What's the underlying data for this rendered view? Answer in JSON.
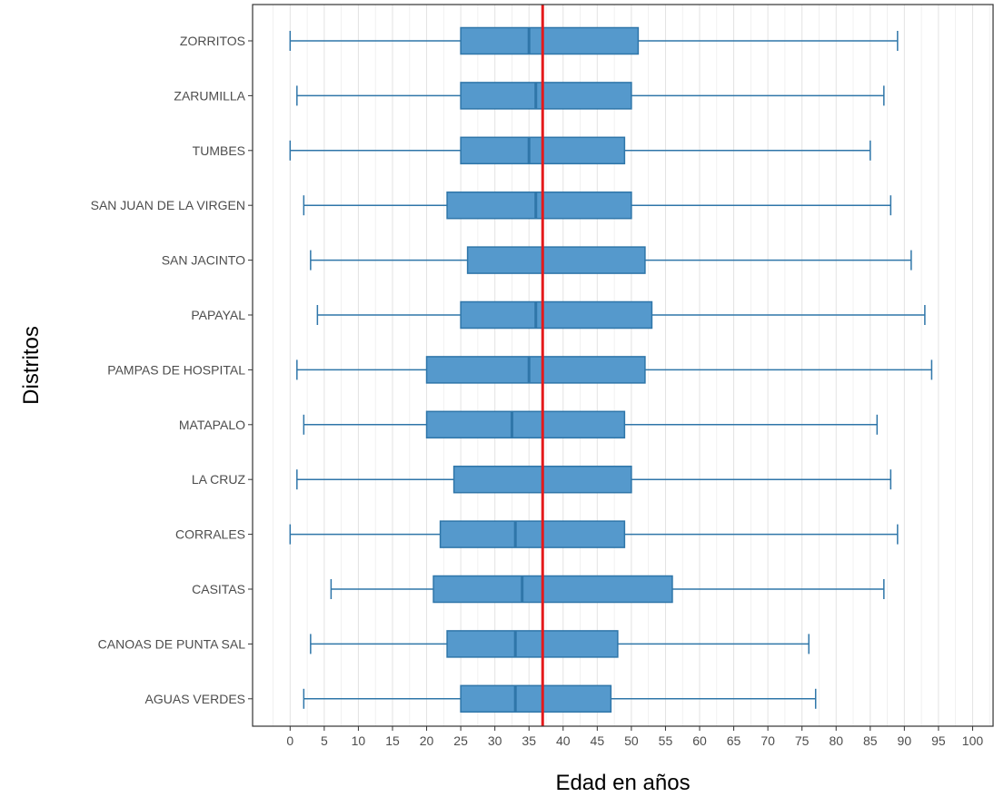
{
  "chart_data": {
    "type": "boxplot",
    "orientation": "horizontal",
    "xlabel": "Edad en años",
    "ylabel": "Distritos",
    "xlim": [
      -5.5,
      103
    ],
    "xticks": [
      0,
      5,
      10,
      15,
      20,
      25,
      30,
      35,
      40,
      45,
      50,
      55,
      60,
      65,
      70,
      75,
      80,
      85,
      90,
      95,
      100
    ],
    "grid": "vertical-major-and-minor",
    "reference_line": {
      "x": 37,
      "color": "#e41a1c"
    },
    "box_color": "#5599cc",
    "box_edge_color": "#2f76a9",
    "categories": [
      "AGUAS VERDES",
      "CANOAS DE PUNTA SAL",
      "CASITAS",
      "CORRALES",
      "LA CRUZ",
      "MATAPALO",
      "PAMPAS DE HOSPITAL",
      "PAPAYAL",
      "SAN JACINTO",
      "SAN JUAN DE LA VIRGEN",
      "TUMBES",
      "ZARUMILLA",
      "ZORRITOS"
    ],
    "boxes": [
      {
        "category": "AGUAS VERDES",
        "min": 2,
        "q1": 25,
        "median": 33,
        "q3": 47,
        "max": 77
      },
      {
        "category": "CANOAS DE PUNTA SAL",
        "min": 3,
        "q1": 23,
        "median": 33,
        "q3": 48,
        "max": 76
      },
      {
        "category": "CASITAS",
        "min": 6,
        "q1": 21,
        "median": 34,
        "q3": 56,
        "max": 87
      },
      {
        "category": "CORRALES",
        "min": 0,
        "q1": 22,
        "median": 33,
        "q3": 49,
        "max": 89
      },
      {
        "category": "LA CRUZ",
        "min": 1,
        "q1": 24,
        "median": 37,
        "q3": 50,
        "max": 88
      },
      {
        "category": "MATAPALO",
        "min": 2,
        "q1": 20,
        "median": 32.5,
        "q3": 49,
        "max": 86
      },
      {
        "category": "PAMPAS DE HOSPITAL",
        "min": 1,
        "q1": 20,
        "median": 35,
        "q3": 52,
        "max": 94
      },
      {
        "category": "PAPAYAL",
        "min": 4,
        "q1": 25,
        "median": 36,
        "q3": 53,
        "max": 93
      },
      {
        "category": "SAN JACINTO",
        "min": 3,
        "q1": 26,
        "median": 37,
        "q3": 52,
        "max": 91
      },
      {
        "category": "SAN JUAN DE LA VIRGEN",
        "min": 2,
        "q1": 23,
        "median": 36,
        "q3": 50,
        "max": 88
      },
      {
        "category": "TUMBES",
        "min": 0,
        "q1": 25,
        "median": 35,
        "q3": 49,
        "max": 85
      },
      {
        "category": "ZARUMILLA",
        "min": 1,
        "q1": 25,
        "median": 36,
        "q3": 50,
        "max": 87
      },
      {
        "category": "ZORRITOS",
        "min": 0,
        "q1": 25,
        "median": 35,
        "q3": 51,
        "max": 89
      }
    ]
  }
}
